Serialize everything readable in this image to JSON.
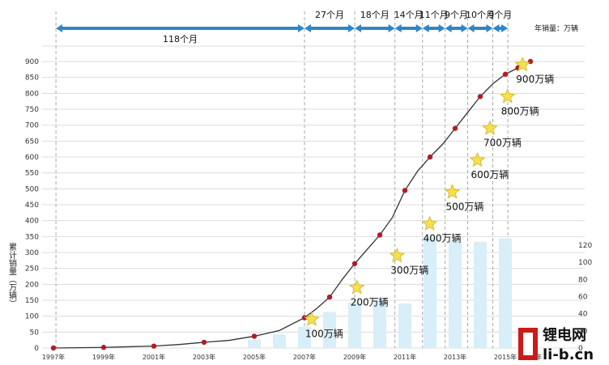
{
  "chart_data": {
    "type": "bar+line",
    "ylabel": "累计销量（万辆）",
    "y2label": "年销量：万辆",
    "ylim": [
      0,
      900
    ],
    "y2lim": [
      0,
      120
    ],
    "y_ticks": [
      0,
      50,
      100,
      150,
      200,
      250,
      300,
      350,
      400,
      450,
      500,
      550,
      600,
      650,
      700,
      750,
      800,
      850,
      900
    ],
    "y2_ticks": [
      0,
      20,
      40,
      60,
      80,
      100,
      120
    ],
    "x_tick_labels": [
      "1997年",
      "1999年",
      "2001年",
      "2003年",
      "2005年",
      "2007年",
      "2009年",
      "2011年",
      "2013年",
      "2015年",
      "2016年"
    ],
    "grid": true,
    "cumulative": {
      "x": [
        1997,
        1998,
        1999,
        2000,
        2001,
        2002,
        2003,
        2004,
        2005,
        2006,
        2007,
        2007.5,
        2008,
        2008.5,
        2009,
        2009.5,
        2010,
        2010.5,
        2011,
        2011.5,
        2012,
        2012.5,
        2013,
        2013.5,
        2014,
        2014.5,
        2015,
        2015.5,
        2016
      ],
      "y": [
        0,
        1,
        2,
        4,
        6,
        11,
        18,
        24,
        37,
        55,
        95,
        125,
        160,
        215,
        265,
        310,
        355,
        410,
        495,
        555,
        600,
        640,
        690,
        740,
        790,
        830,
        860,
        880,
        900
      ]
    },
    "annual": {
      "x": [
        2005,
        2006,
        2007,
        2008,
        2009,
        2010,
        2011,
        2012,
        2013,
        2014,
        2015,
        2016
      ],
      "values": [
        10,
        16,
        25,
        42,
        53,
        58,
        52,
        130,
        125,
        124,
        128,
        20
      ]
    },
    "milestones": [
      {
        "label": "100万辆",
        "value": 100,
        "x": 2006.9
      },
      {
        "label": "200万辆",
        "value": 200,
        "x": 2008.7
      },
      {
        "label": "300万辆",
        "value": 300,
        "x": 2010.3
      },
      {
        "label": "400万辆",
        "value": 400,
        "x": 2011.6
      },
      {
        "label": "500万辆",
        "value": 500,
        "x": 2012.5
      },
      {
        "label": "600万辆",
        "value": 600,
        "x": 2013.5
      },
      {
        "label": "700万辆",
        "value": 700,
        "x": 2014.0
      },
      {
        "label": "800万辆",
        "value": 800,
        "x": 2014.7
      },
      {
        "label": "900万辆",
        "value": 900,
        "x": 2015.3
      }
    ],
    "intervals": [
      {
        "label": "118个月",
        "x_start": 1997.1,
        "x_end": 2007.0
      },
      {
        "label": "27个月",
        "x_start": 2007.0,
        "x_end": 2009.0
      },
      {
        "label": "18个月",
        "x_start": 2009.0,
        "x_end": 2010.6
      },
      {
        "label": "14个月",
        "x_start": 2010.6,
        "x_end": 2011.7
      },
      {
        "label": "11个月",
        "x_start": 2011.7,
        "x_end": 2012.6
      },
      {
        "label": "9个月",
        "x_start": 2012.6,
        "x_end": 2013.5
      },
      {
        "label": "10个月",
        "x_start": 2013.5,
        "x_end": 2014.5
      },
      {
        "label": "9个月",
        "x_start": 2014.5,
        "x_end": 2015.1
      }
    ]
  },
  "watermark": {
    "logo_text": "锂电网",
    "url_text": "li-b.cn",
    "colors": {
      "mark": "#cc1a1a"
    }
  },
  "colors": {
    "line": "#333333",
    "dot": "#b01c24",
    "bar": "#d8eef8",
    "arrow": "#2e86c9",
    "star": "#f5e050",
    "star_stroke": "#d4b020",
    "grid": "#dcdcdc"
  }
}
